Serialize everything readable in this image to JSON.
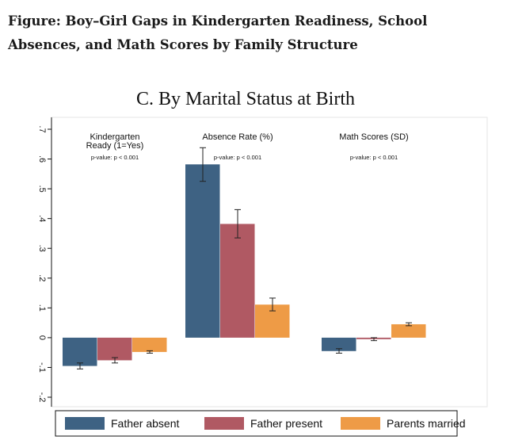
{
  "figure_title": "Figure: Boy–Girl Gaps in Kindergarten Readiness, School Absences, and Math Scores by Family Structure",
  "chart_data": {
    "type": "bar",
    "title": "C. By Marital Status at Birth",
    "xlabel": "",
    "ylabel": "",
    "ylim": [
      -0.2,
      0.7
    ],
    "yticks": [
      -0.2,
      -0.1,
      0,
      0.1,
      0.2,
      0.3,
      0.4,
      0.5,
      0.6,
      0.7
    ],
    "ytick_labels": [
      "-.2",
      "-.1",
      "0",
      ".1",
      ".2",
      ".3",
      ".4",
      ".5",
      ".6",
      ".7"
    ],
    "grid": false,
    "legend_position": "bottom",
    "categories": [
      {
        "label_lines": [
          "Kindergarten",
          "Ready (1=Yes)"
        ],
        "pvalue": "p-value: p < 0.001"
      },
      {
        "label_lines": [
          "Absence Rate (%)"
        ],
        "pvalue": "p-value: p < 0.001"
      },
      {
        "label_lines": [
          "Math Scores (SD)"
        ],
        "pvalue": "p-value: p < 0.001"
      }
    ],
    "series": [
      {
        "name": "Father absent",
        "color": "#3e6283",
        "values": [
          -0.095,
          0.582,
          -0.045
        ],
        "ci_low": [
          -0.105,
          0.525,
          -0.052
        ],
        "ci_high": [
          -0.085,
          0.638,
          -0.037
        ]
      },
      {
        "name": "Father present",
        "color": "#b05963",
        "values": [
          -0.076,
          0.382,
          -0.005
        ],
        "ci_low": [
          -0.085,
          0.335,
          -0.01
        ],
        "ci_high": [
          -0.067,
          0.43,
          0.0
        ]
      },
      {
        "name": "Parents married",
        "color": "#ee9b46",
        "values": [
          -0.048,
          0.111,
          0.045
        ],
        "ci_low": [
          -0.052,
          0.09,
          0.04
        ],
        "ci_high": [
          -0.044,
          0.133,
          0.05
        ]
      }
    ]
  }
}
